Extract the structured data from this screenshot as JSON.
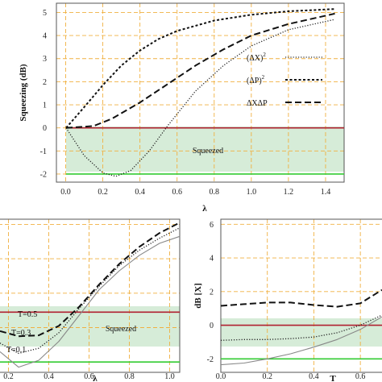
{
  "chart_data": [
    {
      "type": "line",
      "xlabel": "λ",
      "ylabel": "Squeezing (dB)",
      "xlim": [
        -0.05,
        1.5
      ],
      "ylim": [
        -2.35,
        5.4
      ],
      "xticks": [
        "0.0",
        "0.2",
        "0.4",
        "0.6",
        "0.8",
        "1.0",
        "1.2",
        "1.4"
      ],
      "yticks": [
        "-2",
        "-1",
        "0",
        "1",
        "2",
        "3",
        "4",
        "5"
      ],
      "grid": true,
      "legend": "center-right",
      "shaded_region": {
        "from": -2,
        "to": 0,
        "label": "Squeezed"
      },
      "reference_lines": [
        {
          "y": 0,
          "color": "#b02030"
        },
        {
          "y": -2,
          "color": "#33cc33"
        }
      ],
      "series": [
        {
          "name": "(ΔX)²",
          "style": "dotted",
          "x": [
            0,
            0.1,
            0.2,
            0.27,
            0.35,
            0.45,
            0.55,
            0.7,
            0.85,
            1.0,
            1.2,
            1.45
          ],
          "y": [
            0,
            -1.2,
            -1.95,
            -2.1,
            -1.85,
            -1.0,
            0.1,
            1.6,
            2.7,
            3.55,
            4.25,
            4.7
          ]
        },
        {
          "name": "(ΔP)²",
          "style": "short-dash",
          "x": [
            0,
            0.1,
            0.2,
            0.3,
            0.4,
            0.5,
            0.6,
            0.8,
            1.0,
            1.2,
            1.45
          ],
          "y": [
            0,
            0.9,
            1.85,
            2.7,
            3.35,
            3.85,
            4.2,
            4.65,
            4.9,
            5.05,
            5.15
          ]
        },
        {
          "name": "ΔXΔP",
          "style": "long-dash",
          "x": [
            0,
            0.15,
            0.25,
            0.4,
            0.55,
            0.7,
            0.85,
            1.0,
            1.2,
            1.45
          ],
          "y": [
            0,
            0.08,
            0.4,
            1.1,
            1.9,
            2.7,
            3.4,
            4.0,
            4.5,
            4.95
          ]
        }
      ]
    },
    {
      "type": "line",
      "xlabel": "λ",
      "xlim": [
        0.15,
        1.05
      ],
      "ylim": [
        -2.6,
        6.3
      ],
      "xticks": [
        "0.2",
        "0.4",
        "0.6",
        "0.8",
        "1.0"
      ],
      "grid": true,
      "shaded_region": {
        "from": -2,
        "to": 0.9,
        "label": "Squeezed"
      },
      "reference_lines": [
        {
          "y": 0.9,
          "color": "#b02030"
        },
        {
          "y": -2,
          "color": "#33cc33"
        }
      ],
      "annotations": [
        "T=0.5",
        "T=0.3",
        "T=0.1"
      ],
      "series": [
        {
          "style": "solid-gray",
          "x": [
            0.15,
            0.25,
            0.35,
            0.45,
            0.55,
            0.65,
            0.75,
            0.85,
            0.95,
            1.05
          ],
          "y": [
            -1.4,
            -2.3,
            -1.9,
            -0.8,
            0.7,
            2.2,
            3.3,
            4.2,
            4.9,
            5.3
          ]
        },
        {
          "style": "dotted",
          "x": [
            0.15,
            0.25,
            0.35,
            0.45,
            0.55,
            0.65,
            0.75,
            0.85,
            0.95,
            1.05
          ],
          "y": [
            -0.9,
            -1.5,
            -1.2,
            -0.3,
            1.1,
            2.4,
            3.6,
            4.5,
            5.2,
            5.8
          ]
        },
        {
          "style": "long-dash",
          "x": [
            0.15,
            0.25,
            0.35,
            0.45,
            0.55,
            0.65,
            0.75,
            0.85,
            0.95,
            1.05
          ],
          "y": [
            -0.2,
            -0.5,
            -0.45,
            0.1,
            1.2,
            2.5,
            3.7,
            4.7,
            5.5,
            6.1
          ]
        }
      ]
    },
    {
      "type": "line",
      "xlabel": "T",
      "ylabel": "dB [X]",
      "xlim": [
        0.0,
        0.7
      ],
      "ylim": [
        -2.8,
        6.3
      ],
      "xticks": [
        "0.0",
        "0.2",
        "0.4",
        "0.6"
      ],
      "yticks": [
        "-2",
        "0",
        "2",
        "4",
        "6"
      ],
      "grid": true,
      "shaded_region": {
        "from": -2,
        "to": 0
      },
      "reference_lines": [
        {
          "y": 0,
          "color": "#b02030"
        },
        {
          "y": -2,
          "color": "#33cc33"
        }
      ],
      "series": [
        {
          "style": "long-dash",
          "x": [
            0,
            0.1,
            0.2,
            0.3,
            0.4,
            0.5,
            0.6,
            0.7
          ],
          "y": [
            1.15,
            1.25,
            1.35,
            1.35,
            1.2,
            1.1,
            1.3,
            2.1
          ]
        },
        {
          "style": "dotted",
          "x": [
            0,
            0.1,
            0.2,
            0.3,
            0.4,
            0.5,
            0.6,
            0.7
          ],
          "y": [
            -0.9,
            -0.85,
            -0.85,
            -0.8,
            -0.7,
            -0.45,
            0.0,
            0.6
          ]
        },
        {
          "style": "solid-gray",
          "x": [
            0,
            0.1,
            0.2,
            0.3,
            0.4,
            0.5,
            0.6,
            0.7
          ],
          "y": [
            -2.35,
            -2.25,
            -2.0,
            -1.7,
            -1.3,
            -0.85,
            -0.25,
            0.5
          ]
        }
      ]
    }
  ],
  "legend": {
    "dx2": "(ΔX)",
    "dp2": "(ΔP)",
    "sup": "2",
    "dxdp": "ΔXΔP"
  },
  "labels": {
    "squeezed_top": "Squeezed",
    "squeezed_bl": "Squeezed",
    "t05": "T=0.5",
    "t03": "T=0.3",
    "t01": "T=0.1"
  },
  "colors": {
    "grid": "#f0b040",
    "shade": "#d6ecd8",
    "red_line": "#b02030",
    "green_line": "#33cc33"
  }
}
